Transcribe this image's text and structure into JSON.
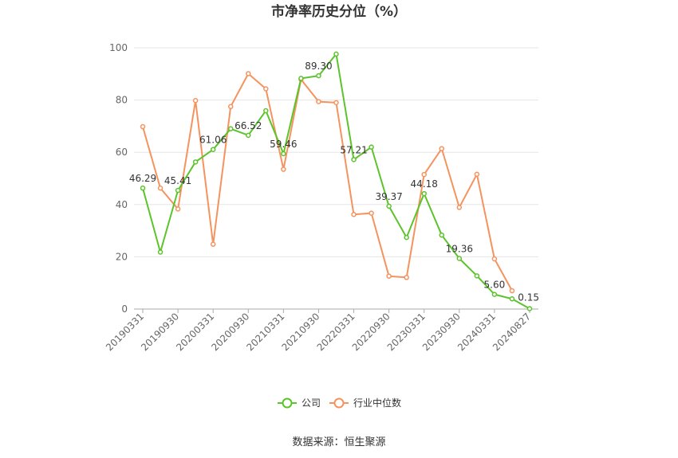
{
  "chart_data": {
    "type": "line",
    "title": "市净率历史分位（%）",
    "ylim": [
      0,
      100
    ],
    "yticks": [
      0,
      20,
      40,
      60,
      80,
      100
    ],
    "grid": true,
    "legend_position": "bottom",
    "x": [
      "20190331",
      "20190630",
      "20190930",
      "20191231",
      "20200331",
      "20200630",
      "20200930",
      "20201231",
      "20210331",
      "20210630",
      "20210930",
      "20211231",
      "20220331",
      "20220630",
      "20220930",
      "20221231",
      "20230331",
      "20230630",
      "20230930",
      "20231231",
      "20240331",
      "20240630",
      "20240827"
    ],
    "x_tick_labels": [
      "20190331",
      "20190930",
      "20200331",
      "20200930",
      "20210331",
      "20210930",
      "20220331",
      "20220930",
      "20230331",
      "20230930",
      "20240331",
      "20240827"
    ],
    "series": [
      {
        "name": "公司",
        "color": "#5cc42b",
        "values": [
          46.29,
          21.8,
          45.41,
          56.3,
          61.06,
          69.0,
          66.52,
          75.9,
          59.46,
          88.3,
          89.3,
          97.6,
          57.21,
          62.0,
          39.37,
          27.4,
          44.18,
          28.3,
          19.36,
          12.7,
          5.6,
          3.9,
          0.15
        ]
      },
      {
        "name": "行业中位数",
        "color": "#f5935e",
        "values": [
          69.8,
          46.3,
          38.3,
          79.8,
          24.8,
          77.5,
          90.1,
          84.3,
          53.5,
          87.9,
          79.4,
          79.0,
          36.2,
          36.7,
          12.6,
          12.1,
          51.5,
          61.4,
          38.9,
          51.6,
          19.2,
          7.0,
          null
        ]
      }
    ],
    "data_labels": [
      {
        "index": 0,
        "text": "46.29"
      },
      {
        "index": 2,
        "text": "45.41"
      },
      {
        "index": 4,
        "text": "61.06"
      },
      {
        "index": 6,
        "text": "66.52"
      },
      {
        "index": 8,
        "text": "59.46"
      },
      {
        "index": 10,
        "text": "89.30"
      },
      {
        "index": 12,
        "text": "57.21"
      },
      {
        "index": 14,
        "text": "39.37"
      },
      {
        "index": 16,
        "text": "44.18"
      },
      {
        "index": 18,
        "text": "19.36"
      },
      {
        "index": 20,
        "text": "5.60"
      },
      {
        "index": 22,
        "text": "0.15"
      }
    ]
  },
  "legend": {
    "company_label": "公司",
    "industry_label": "行业中位数"
  },
  "source": "数据来源：恒生聚源"
}
